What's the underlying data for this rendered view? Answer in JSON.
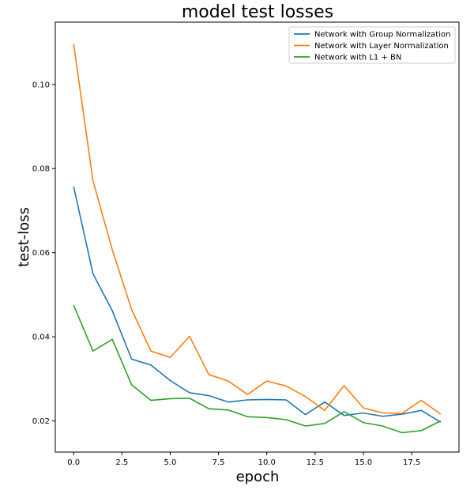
{
  "chart_data": {
    "type": "line",
    "title": "model test losses",
    "xlabel": "epoch",
    "ylabel": "test-loss",
    "xlim": [
      -0.95,
      19.95
    ],
    "ylim": [
      0.0126,
      0.1148
    ],
    "xticks": [
      0.0,
      2.5,
      5.0,
      7.5,
      10.0,
      12.5,
      15.0,
      17.5
    ],
    "xtick_labels": [
      "0.0",
      "2.5",
      "5.0",
      "7.5",
      "10.0",
      "12.5",
      "15.0",
      "17.5"
    ],
    "yticks": [
      0.02,
      0.04,
      0.06,
      0.08,
      0.1
    ],
    "ytick_labels": [
      "0.02",
      "0.04",
      "0.06",
      "0.08",
      "0.10"
    ],
    "grid": false,
    "legend_position": "top-right",
    "x": [
      0,
      1,
      2,
      3,
      4,
      5,
      6,
      7,
      8,
      9,
      10,
      11,
      12,
      13,
      14,
      15,
      16,
      17,
      18,
      19
    ],
    "series": [
      {
        "name": "Network with Group Normalization",
        "color": "#1f77b4",
        "values": [
          0.0757,
          0.055,
          0.0462,
          0.0347,
          0.0333,
          0.0296,
          0.0267,
          0.026,
          0.0245,
          0.025,
          0.0251,
          0.025,
          0.0215,
          0.0245,
          0.0213,
          0.0219,
          0.0211,
          0.0216,
          0.0225,
          0.0197
        ]
      },
      {
        "name": "Network with Layer Normalization",
        "color": "#ff7f0e",
        "values": [
          0.1096,
          0.0771,
          0.0607,
          0.0465,
          0.0366,
          0.0351,
          0.0401,
          0.031,
          0.0295,
          0.0263,
          0.0295,
          0.0283,
          0.0258,
          0.0225,
          0.0284,
          0.0231,
          0.0219,
          0.0218,
          0.0249,
          0.0216
        ]
      },
      {
        "name": "Network with L1 + BN",
        "color": "#2ca02c",
        "values": [
          0.0475,
          0.0366,
          0.0394,
          0.0286,
          0.0249,
          0.0253,
          0.0254,
          0.0229,
          0.0226,
          0.021,
          0.0208,
          0.0203,
          0.0188,
          0.0194,
          0.0222,
          0.0196,
          0.0188,
          0.0172,
          0.0177,
          0.02
        ]
      }
    ]
  }
}
